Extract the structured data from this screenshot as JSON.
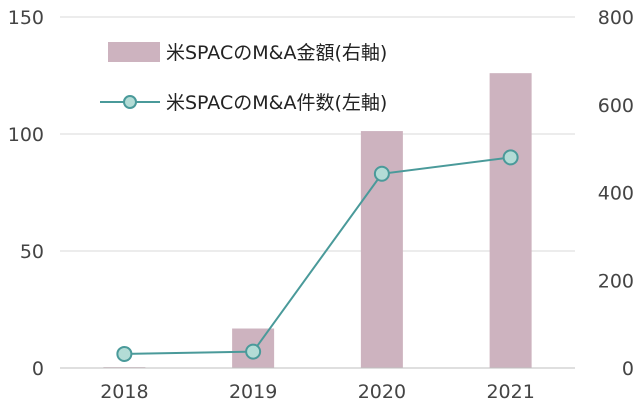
{
  "chart_data": {
    "type": "bar+line",
    "categories": [
      "2018",
      "2019",
      "2020",
      "2021"
    ],
    "series": [
      {
        "name": "米SPACのM&A金額(右軸)",
        "type": "bar",
        "axis": "right",
        "color": "#cdb3bf",
        "values": [
          2,
          90,
          540,
          672
        ]
      },
      {
        "name": "米SPACのM&A件数(左軸)",
        "type": "line",
        "axis": "left",
        "color": "#4a9a9a",
        "marker_fill": "#b3dcd6",
        "values": [
          6,
          7,
          83,
          90
        ]
      }
    ],
    "left_axis": {
      "ylim": [
        0,
        150
      ],
      "ticks": [
        "0",
        "50",
        "100",
        "150"
      ]
    },
    "right_axis": {
      "ylim": [
        0,
        800
      ],
      "ticks": [
        "0",
        "200",
        "400",
        "600",
        "800"
      ]
    },
    "grid": true,
    "legend_position": "top-left"
  }
}
